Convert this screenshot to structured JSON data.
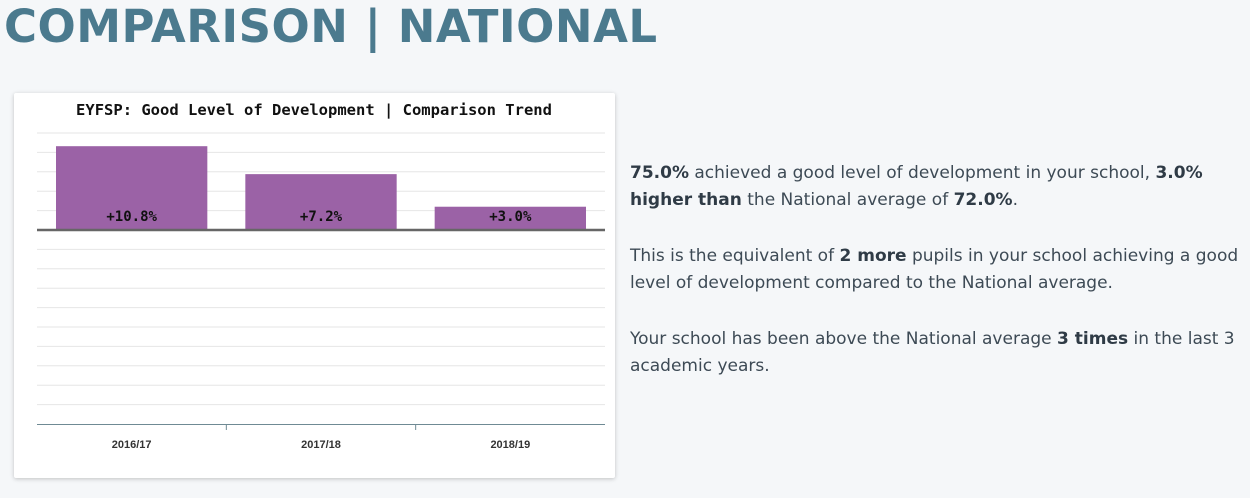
{
  "header": {
    "title": "COMPARISON | NATIONAL"
  },
  "colors": {
    "title": "#4b7a8e",
    "bar": "#9b62a6",
    "zero_line": "#666666",
    "grid": "#e6e6e6",
    "axis": "#6f8a94"
  },
  "chart_data": {
    "type": "bar",
    "title": "EYFSP: Good Level of Development | Comparison Trend",
    "xlabel": "",
    "ylabel": "",
    "categories": [
      "2016/17",
      "2017/18",
      "2018/19"
    ],
    "values": [
      10.8,
      7.2,
      3.0
    ],
    "data_labels": [
      "+10.8%",
      "+7.2%",
      "+3.0%"
    ],
    "ylim": [
      -25,
      12.5
    ],
    "grid": true,
    "legend": "none"
  },
  "summary": {
    "p1": {
      "value": "75.0%",
      "text1": " achieved a good level of development in your school, ",
      "diff": "3.0% higher than",
      "text2": " the National average of ",
      "national": "72.0%",
      "end": "."
    },
    "p2": {
      "text1": "This is the equivalent of ",
      "pupils": "2 more",
      "text2": " pupils in your school achieving a good level of development compared to the National average."
    },
    "p3": {
      "text1": "Your school has been above the National average ",
      "times": "3 times",
      "text2": " in the last 3 academic years."
    }
  }
}
